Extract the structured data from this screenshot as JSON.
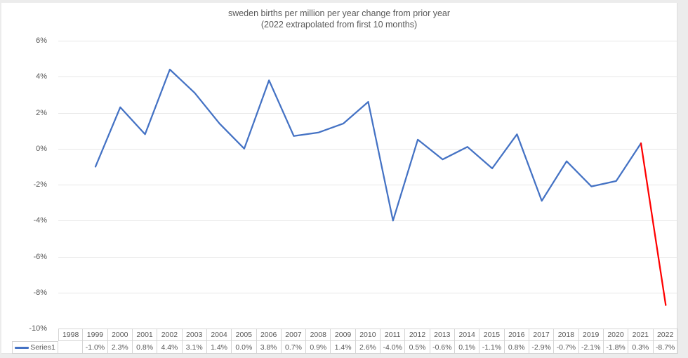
{
  "chart": {
    "title_line1": "sweden births per million per year change from prior year",
    "title_line2": "(2022 extrapolated from first 10 months)"
  },
  "chart_data": {
    "type": "line",
    "title": "sweden births per million per year change from prior year (2022 extrapolated from first 10 months)",
    "xlabel": "",
    "ylabel": "",
    "grid": true,
    "legend_position": "data-table-left",
    "ylim": [
      -10,
      6
    ],
    "y_ticks": [
      {
        "value": 6,
        "label": "6%"
      },
      {
        "value": 4,
        "label": "4%"
      },
      {
        "value": 2,
        "label": "2%"
      },
      {
        "value": 0,
        "label": "0%"
      },
      {
        "value": -2,
        "label": "-2%"
      },
      {
        "value": -4,
        "label": "-4%"
      },
      {
        "value": -6,
        "label": "-6%"
      },
      {
        "value": -8,
        "label": "-8%"
      },
      {
        "value": -10,
        "label": "-10%"
      }
    ],
    "categories": [
      "1998",
      "1999",
      "2000",
      "2001",
      "2002",
      "2003",
      "2004",
      "2005",
      "2006",
      "2007",
      "2008",
      "2009",
      "2010",
      "2011",
      "2012",
      "2013",
      "2014",
      "2015",
      "2016",
      "2017",
      "2018",
      "2019",
      "2020",
      "2021",
      "2022"
    ],
    "series": [
      {
        "name": "Series1",
        "color": "#4472c4",
        "values": [
          null,
          -1.0,
          2.3,
          0.8,
          4.4,
          3.1,
          1.4,
          0.0,
          3.8,
          0.7,
          0.9,
          1.4,
          2.6,
          -4.0,
          0.5,
          -0.6,
          0.1,
          -1.1,
          0.8,
          -2.9,
          -0.7,
          -2.1,
          -1.8,
          0.3,
          -8.7
        ],
        "values_formatted": [
          "",
          "-1.0%",
          "2.3%",
          "0.8%",
          "4.4%",
          "3.1%",
          "1.4%",
          "0.0%",
          "3.8%",
          "0.7%",
          "0.9%",
          "1.4%",
          "2.6%",
          "-4.0%",
          "0.5%",
          "-0.6%",
          "0.1%",
          "-1.1%",
          "0.8%",
          "-2.9%",
          "-0.7%",
          "-2.1%",
          "-1.8%",
          "0.3%",
          "-8.7%"
        ]
      }
    ],
    "highlight_color": "#ff0000",
    "highlight_from_index": 23
  }
}
